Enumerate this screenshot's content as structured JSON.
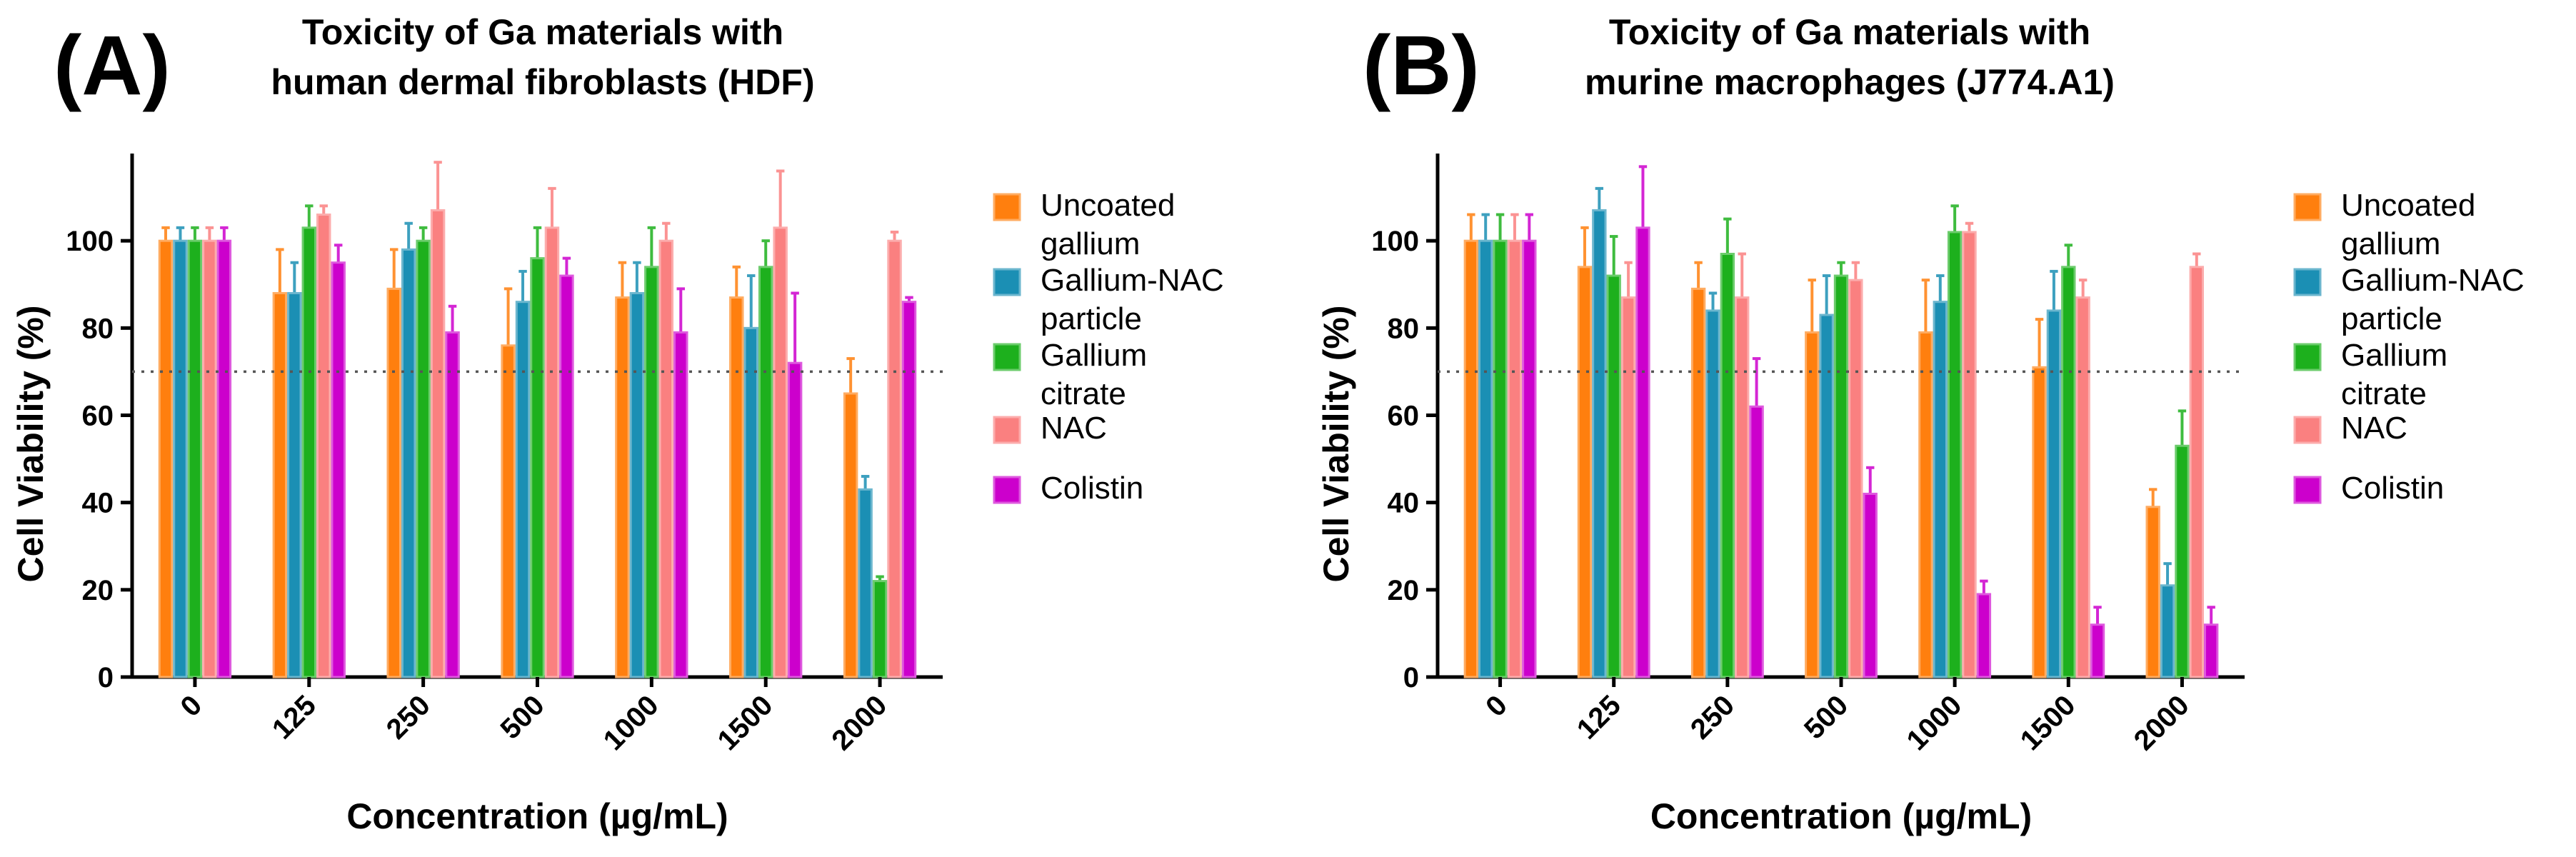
{
  "figure": {
    "legend": [
      {
        "lines": [
          "Uncoated",
          "gallium"
        ],
        "color": "#FF7F0E"
      },
      {
        "lines": [
          "Gallium-NAC",
          "particle"
        ],
        "color": "#1B8FB4"
      },
      {
        "lines": [
          "Gallium",
          "citrate"
        ],
        "color": "#1DB01D"
      },
      {
        "lines": [
          "NAC"
        ],
        "color": "#FA8080"
      },
      {
        "lines": [
          "Colistin"
        ],
        "color": "#CC00CC"
      }
    ],
    "colors": {
      "Uncoated gallium": "#FF7F0E",
      "Gallium-NAC particle": "#1B8FB4",
      "Gallium citrate": "#1DB01D",
      "NAC": "#FA8080",
      "Colistin": "#CC00CC"
    }
  },
  "chart_data": [
    {
      "panel": "(A)",
      "type": "bar",
      "title": [
        "Toxicity of Ga materials with",
        "human dermal fibroblasts (HDF)"
      ],
      "xlabel": "Concentration (µg/mL)",
      "ylabel": "Cell Viability (%)",
      "ylim": [
        0,
        120
      ],
      "yticks": [
        0,
        20,
        40,
        60,
        80,
        100
      ],
      "reference_line": 70,
      "categories": [
        "0",
        "125",
        "250",
        "500",
        "1000",
        "1500",
        "2000"
      ],
      "series": [
        {
          "name": "Uncoated gallium",
          "values": [
            100,
            88,
            89,
            76,
            87,
            87,
            65
          ],
          "errors": [
            3,
            10,
            9,
            13,
            8,
            7,
            8
          ]
        },
        {
          "name": "Gallium-NAC particle",
          "values": [
            100,
            88,
            98,
            86,
            88,
            80,
            43
          ],
          "errors": [
            3,
            7,
            6,
            7,
            7,
            12,
            3
          ]
        },
        {
          "name": "Gallium citrate",
          "values": [
            100,
            103,
            100,
            96,
            94,
            94,
            22
          ],
          "errors": [
            3,
            5,
            3,
            7,
            9,
            6,
            1
          ]
        },
        {
          "name": "NAC",
          "values": [
            100,
            106,
            107,
            103,
            100,
            103,
            100
          ],
          "errors": [
            3,
            2,
            11,
            9,
            4,
            13,
            2
          ]
        },
        {
          "name": "Colistin",
          "values": [
            100,
            95,
            79,
            92,
            79,
            72,
            86
          ],
          "errors": [
            3,
            4,
            6,
            4,
            10,
            16,
            1
          ]
        }
      ]
    },
    {
      "panel": "(B)",
      "type": "bar",
      "title": [
        "Toxicity of Ga materials with",
        "murine macrophages (J774.A1)"
      ],
      "xlabel": "Concentration (µg/mL)",
      "ylabel": "Cell Viability (%)",
      "ylim": [
        0,
        120
      ],
      "yticks": [
        0,
        20,
        40,
        60,
        80,
        100
      ],
      "reference_line": 70,
      "categories": [
        "0",
        "125",
        "250",
        "500",
        "1000",
        "1500",
        "2000"
      ],
      "series": [
        {
          "name": "Uncoated gallium",
          "values": [
            100,
            94,
            89,
            79,
            79,
            71,
            39
          ],
          "errors": [
            6,
            9,
            6,
            12,
            12,
            11,
            4
          ]
        },
        {
          "name": "Gallium-NAC particle",
          "values": [
            100,
            107,
            84,
            83,
            86,
            84,
            21
          ],
          "errors": [
            6,
            5,
            4,
            9,
            6,
            9,
            5
          ]
        },
        {
          "name": "Gallium citrate",
          "values": [
            100,
            92,
            97,
            92,
            102,
            94,
            53
          ],
          "errors": [
            6,
            9,
            8,
            3,
            6,
            5,
            8
          ]
        },
        {
          "name": "NAC",
          "values": [
            100,
            87,
            87,
            91,
            102,
            87,
            94
          ],
          "errors": [
            6,
            8,
            10,
            4,
            2,
            4,
            3
          ]
        },
        {
          "name": "Colistin",
          "values": [
            100,
            103,
            62,
            42,
            19,
            12,
            12
          ],
          "errors": [
            6,
            14,
            11,
            6,
            3,
            4,
            4
          ]
        }
      ]
    }
  ]
}
